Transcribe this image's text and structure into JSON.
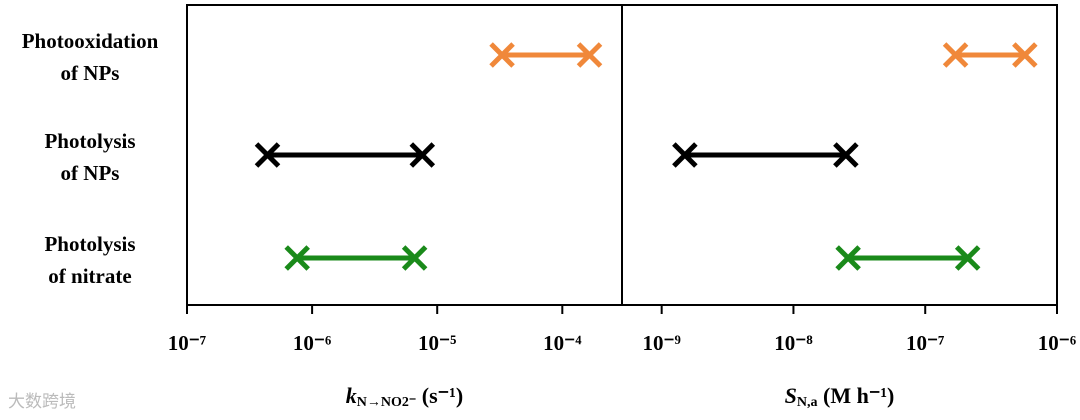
{
  "chart_data": [
    {
      "type": "range",
      "xscale": "log",
      "categories": [
        [
          "Photooxidation",
          "of NPs"
        ],
        [
          "Photolysis",
          "of NPs"
        ],
        [
          "Photolysis",
          "of nitrate"
        ]
      ],
      "values": [
        [
          3.3e-05,
          0.000165
        ],
        [
          4.4e-07,
          7.6e-06
        ],
        [
          7.6e-07,
          6.6e-06
        ]
      ],
      "colors": [
        "#f0883a",
        "#000000",
        "#1a8a1a"
      ],
      "xlim": [
        1e-07,
        0.0003
      ],
      "xticks": [
        {
          "value": 1e-07,
          "label": "10⁻⁷"
        },
        {
          "value": 1e-06,
          "label": "10⁻⁶"
        },
        {
          "value": 1e-05,
          "label": "10⁻⁵"
        },
        {
          "value": 0.0001,
          "label": "10⁻⁴"
        }
      ],
      "x_label": {
        "symbol": "k",
        "subscript": "N→NO2⁻",
        "unit": " (s⁻¹)"
      }
    },
    {
      "type": "range",
      "xscale": "log",
      "values": [
        [
          1.7e-07,
          5.7e-07
        ],
        [
          1.5e-09,
          2.5e-08
        ],
        [
          2.6e-08,
          2.1e-07
        ]
      ],
      "colors": [
        "#f0883a",
        "#000000",
        "#1a8a1a"
      ],
      "xlim": [
        5e-10,
        1e-06
      ],
      "xticks": [
        {
          "value": 1e-09,
          "label": "10⁻⁹"
        },
        {
          "value": 1e-08,
          "label": "10⁻⁸"
        },
        {
          "value": 1e-07,
          "label": "10⁻⁷"
        },
        {
          "value": 1e-06,
          "label": "10⁻⁶"
        }
      ],
      "x_label": {
        "symbol": "S",
        "subscript": "N,a",
        "unit": " (M h⁻¹)"
      }
    }
  ],
  "watermark": "大数跨境"
}
